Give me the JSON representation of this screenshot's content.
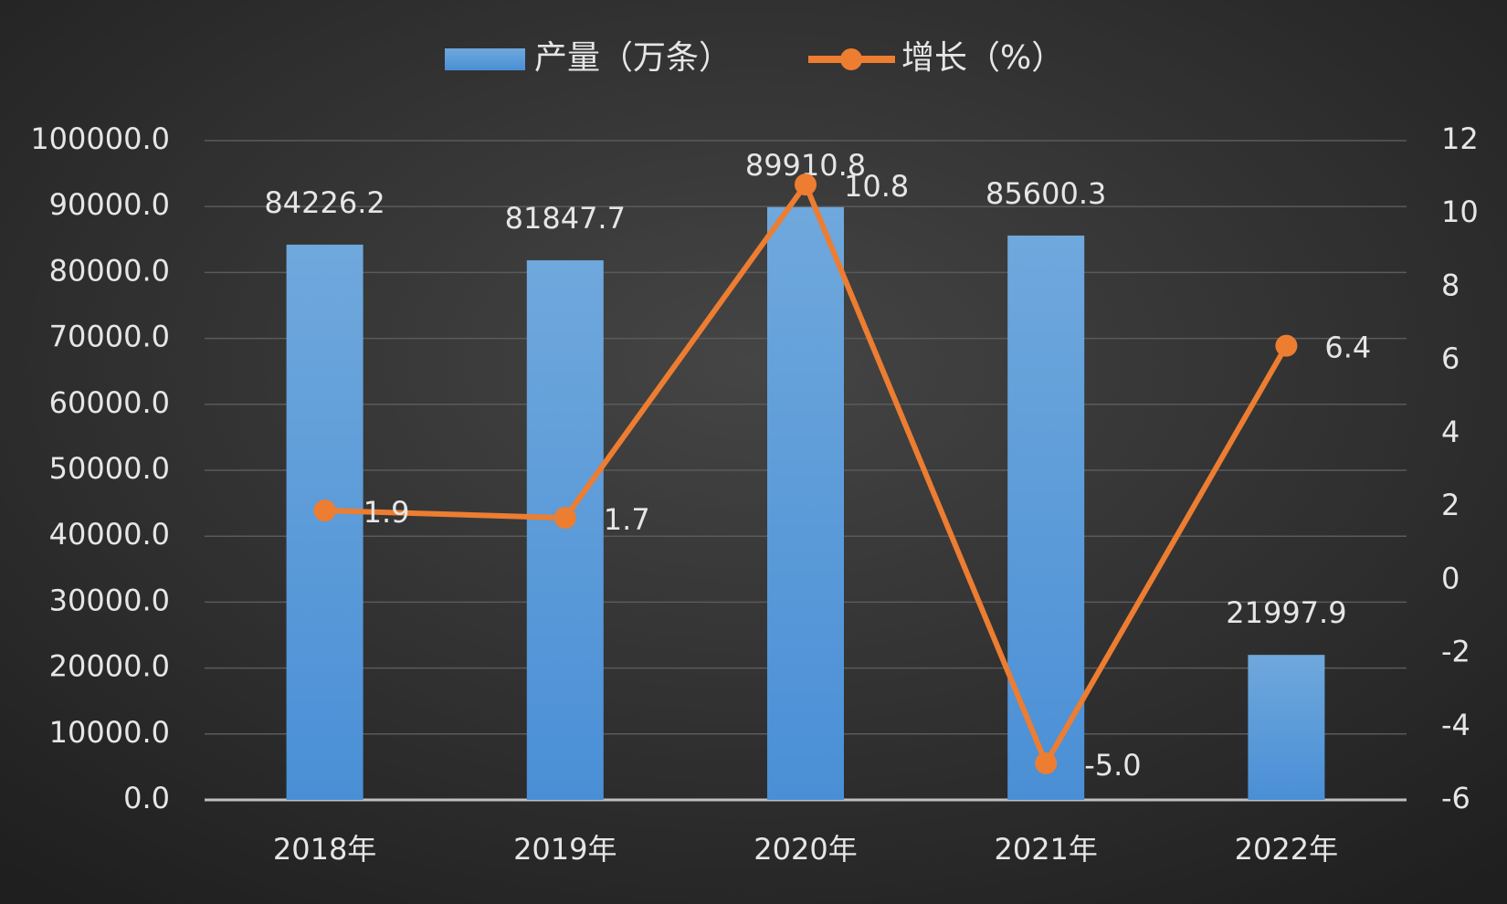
{
  "chart_data": {
    "type": "bar",
    "categories": [
      "2018年",
      "2019年",
      "2020年",
      "2021年",
      "2022年"
    ],
    "series": [
      {
        "name": "产量（万条）",
        "type": "bar",
        "color": "#5b9bd5",
        "values": [
          84226.2,
          81847.7,
          89910.8,
          85600.3,
          21997.9
        ]
      },
      {
        "name": "增长（%）",
        "type": "line",
        "axis": "y2",
        "color": "#ed7d31",
        "values": [
          1.9,
          1.7,
          10.8,
          -5.0,
          6.4
        ],
        "value_labels": [
          "1.9",
          "1.7",
          "10.8",
          "-5.0",
          "6.4"
        ]
      }
    ],
    "ylim": [
      0,
      100000
    ],
    "yticks": [
      {
        "value": 0,
        "label": "0.0"
      },
      {
        "value": 10000,
        "label": "10000.0"
      },
      {
        "value": 20000,
        "label": "20000.0"
      },
      {
        "value": 30000,
        "label": "30000.0"
      },
      {
        "value": 40000,
        "label": "40000.0"
      },
      {
        "value": 50000,
        "label": "50000.0"
      },
      {
        "value": 60000,
        "label": "60000.0"
      },
      {
        "value": 70000,
        "label": "70000.0"
      },
      {
        "value": 80000,
        "label": "80000.0"
      },
      {
        "value": 90000,
        "label": "90000.0"
      },
      {
        "value": 100000,
        "label": "100000.0"
      }
    ],
    "y2lim": [
      -6,
      12
    ],
    "y2ticks": [
      -6,
      -4,
      -2,
      0,
      2,
      4,
      6,
      8,
      10,
      12
    ],
    "grid": true
  }
}
